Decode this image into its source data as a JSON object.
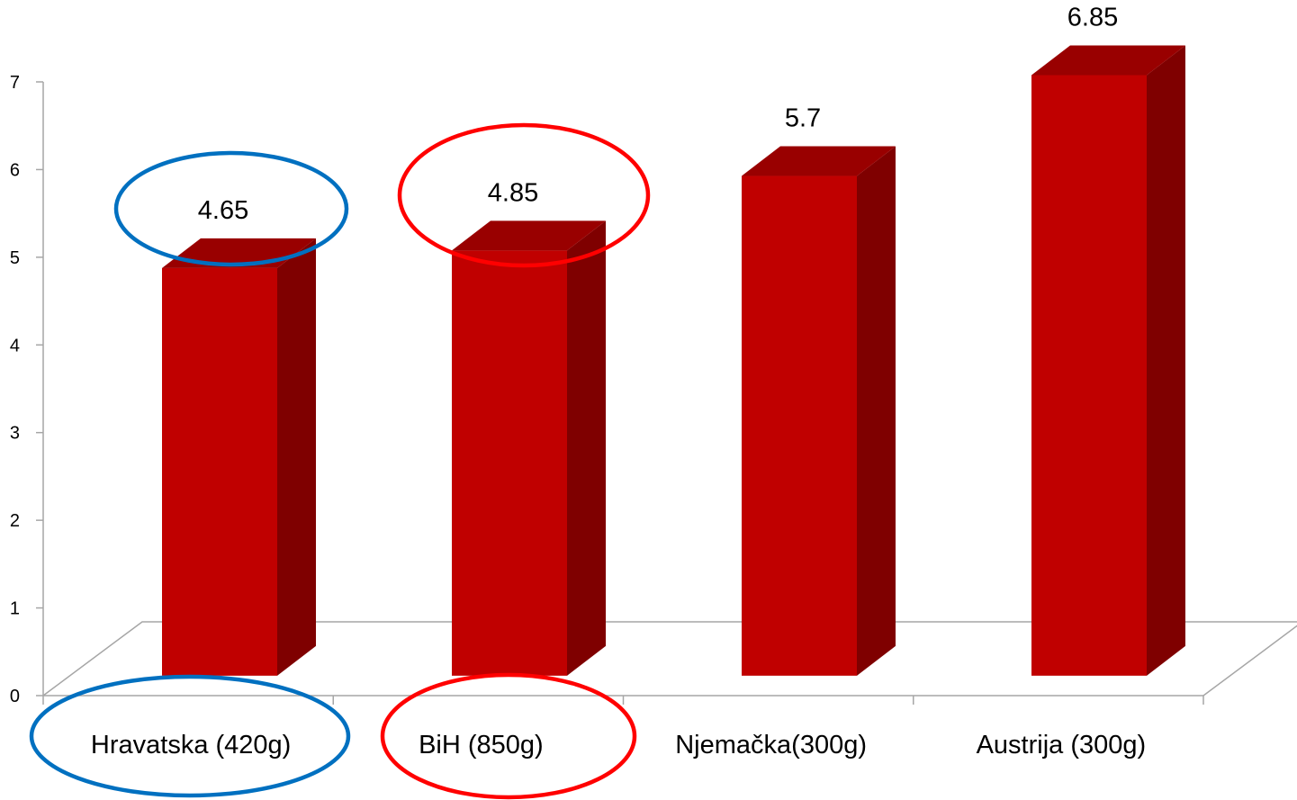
{
  "chart_data": {
    "type": "bar",
    "style": "3d",
    "categories": [
      "Hravatska (420g)",
      "BiH (850g)",
      "Njemačka(300g)",
      "Austrija (300g)"
    ],
    "values": [
      4.65,
      4.85,
      5.7,
      6.85
    ],
    "data_labels": [
      "4.65",
      "4.85",
      "5.7",
      "6.85"
    ],
    "title": "",
    "xlabel": "",
    "ylabel": "",
    "ylim": [
      0,
      7
    ],
    "yticks": [
      "0",
      "1",
      "2",
      "3",
      "4",
      "5",
      "6",
      "7"
    ],
    "grid": false,
    "legend": "none",
    "colors": {
      "bar_front": "#C00000",
      "bar_side": "#7F0000",
      "bar_top": "#990000",
      "axis": "#A6A6A6",
      "highlight_1": "#0070C0",
      "highlight_2": "#FF0000"
    },
    "highlights": [
      {
        "category": "Hravatska (420g)",
        "color": "blue"
      },
      {
        "category": "BiH (850g)",
        "color": "red"
      }
    ]
  }
}
